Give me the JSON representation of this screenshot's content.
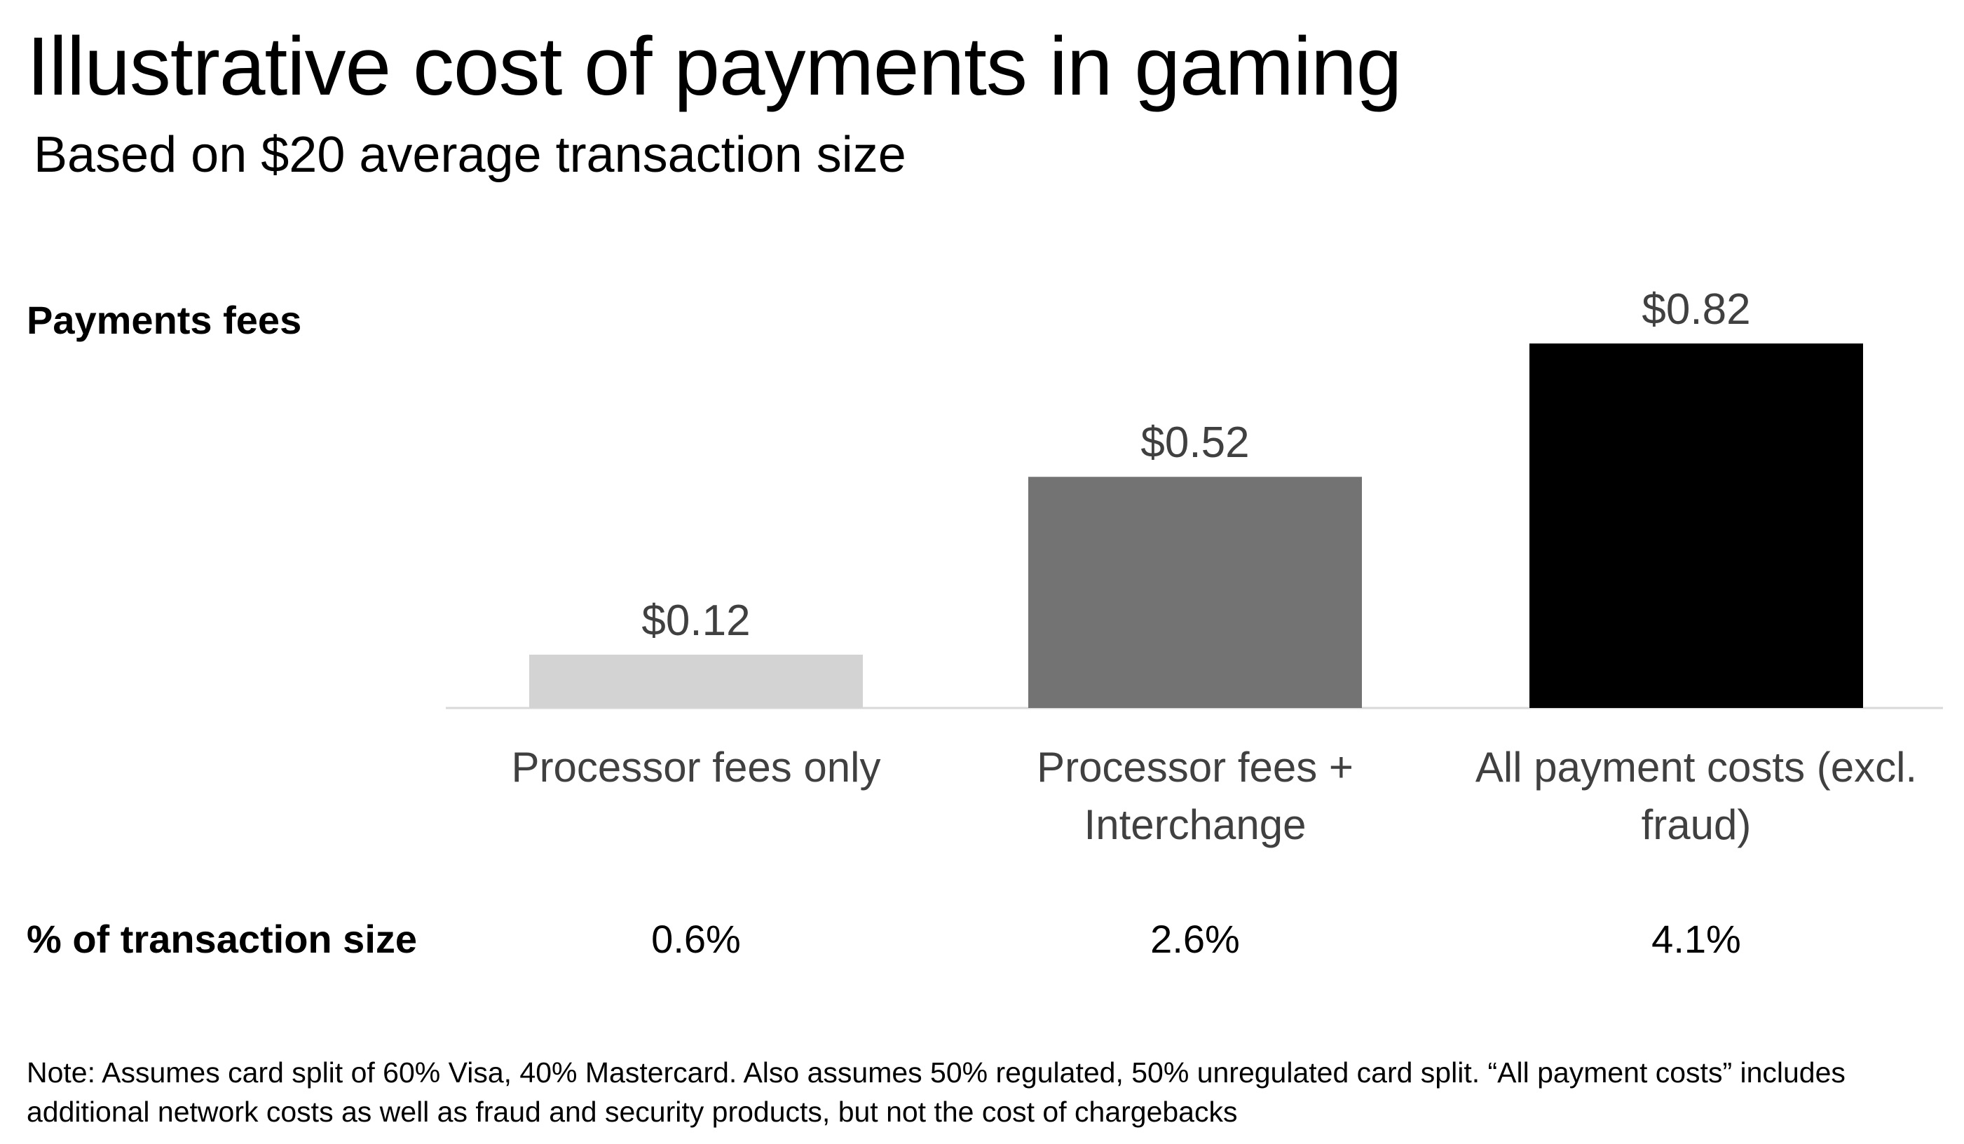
{
  "title": "Illustrative cost of payments in gaming",
  "subtitle": "Based on $20 average transaction size",
  "row_labels": {
    "fees": "Payments fees",
    "percent": "% of transaction size"
  },
  "percentages": [
    "0.6%",
    "2.6%",
    "4.1%"
  ],
  "note": "Note: Assumes card split of 60% Visa, 40% Mastercard. Also assumes 50% regulated, 50% unregulated card split. “All payment costs” includes additional network costs as well as fraud and security products, but not the cost of chargebacks",
  "colors": {
    "bar_1": "#d3d3d3",
    "bar_2": "#737373",
    "bar_3": "#000000",
    "axis": "#d9d9d9",
    "label_text": "#404040"
  },
  "chart_data": {
    "type": "bar",
    "categories": [
      [
        "Processor fees only"
      ],
      [
        "Processor fees +",
        "Interchange"
      ],
      [
        "All payment costs (excl.",
        "fraud)"
      ]
    ],
    "values": [
      0.12,
      0.52,
      0.82
    ],
    "value_labels": [
      "$0.12",
      "$0.52",
      "$0.82"
    ],
    "ylim": [
      0,
      0.82
    ],
    "grid": false,
    "legend": "none"
  }
}
